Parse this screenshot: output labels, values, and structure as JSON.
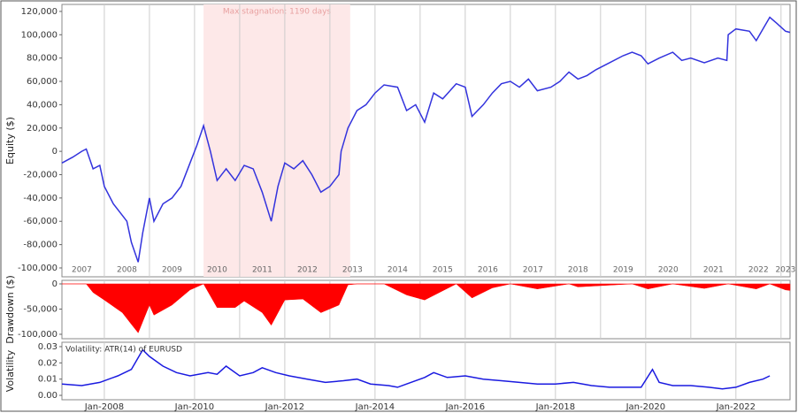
{
  "chart_data": [
    {
      "type": "line",
      "ylabel": "Equity ($)",
      "x": [
        2007.06,
        2007.3,
        2007.5,
        2007.6,
        2007.75,
        2007.9,
        2008.0,
        2008.2,
        2008.4,
        2008.5,
        2008.6,
        2008.75,
        2008.85,
        2009.0,
        2009.1,
        2009.3,
        2009.5,
        2009.7,
        2009.9,
        2010.05,
        2010.2,
        2010.35,
        2010.5,
        2010.7,
        2010.9,
        2011.1,
        2011.3,
        2011.5,
        2011.7,
        2011.85,
        2012.0,
        2012.2,
        2012.4,
        2012.6,
        2012.8,
        2013.0,
        2013.2,
        2013.25,
        2013.4,
        2013.6,
        2013.8,
        2014.0,
        2014.2,
        2014.5,
        2014.7,
        2014.9,
        2015.1,
        2015.3,
        2015.5,
        2015.8,
        2016.0,
        2016.15,
        2016.4,
        2016.6,
        2016.8,
        2017.0,
        2017.2,
        2017.4,
        2017.6,
        2017.9,
        2018.1,
        2018.3,
        2018.5,
        2018.7,
        2018.9,
        2019.2,
        2019.5,
        2019.7,
        2019.9,
        2020.05,
        2020.3,
        2020.6,
        2020.8,
        2021.0,
        2021.3,
        2021.6,
        2021.8,
        2021.83,
        2022.0,
        2022.3,
        2022.45,
        2022.6,
        2022.75,
        2022.9,
        2023.1,
        2023.2
      ],
      "series": [
        {
          "name": "Equity",
          "color": "#3333dd",
          "values": [
            -10000,
            -5000,
            0,
            2000,
            -15000,
            -12000,
            -30000,
            -45000,
            -55000,
            -60000,
            -78000,
            -95000,
            -70000,
            -40000,
            -60000,
            -45000,
            -40000,
            -30000,
            -10000,
            5000,
            22000,
            0,
            -25000,
            -15000,
            -25000,
            -12000,
            -15000,
            -35000,
            -60000,
            -30000,
            -10000,
            -15000,
            -8000,
            -20000,
            -35000,
            -30000,
            -20000,
            0,
            20000,
            35000,
            40000,
            50000,
            57000,
            55000,
            35000,
            40000,
            25000,
            50000,
            45000,
            58000,
            55000,
            30000,
            40000,
            50000,
            58000,
            60000,
            55000,
            62000,
            52000,
            55000,
            60000,
            68000,
            62000,
            65000,
            70000,
            76000,
            82000,
            85000,
            82000,
            75000,
            80000,
            85000,
            78000,
            80000,
            76000,
            80000,
            78000,
            100000,
            105000,
            103000,
            95000,
            105000,
            115000,
            110000,
            103000,
            102000
          ]
        }
      ],
      "xlim": [
        2007.06,
        2023.2
      ],
      "ylim": [
        -107600,
        126000
      ],
      "yticks": [
        {
          "value": -100000,
          "label": "-100,000"
        },
        {
          "value": -80000,
          "label": "-80,000"
        },
        {
          "value": -60000,
          "label": "-60,000"
        },
        {
          "value": -40000,
          "label": "-40,000"
        },
        {
          "value": -20000,
          "label": "-20,000"
        },
        0,
        {
          "value": 20000,
          "label": "20,000"
        },
        {
          "value": 40000,
          "label": "40,000"
        },
        {
          "value": 60000,
          "label": "60,000"
        },
        {
          "value": 80000,
          "label": "80,000"
        },
        {
          "value": 100000,
          "label": "100,000"
        },
        {
          "value": 120000,
          "label": "120,000"
        }
      ],
      "xticks": [
        {
          "value": 2007.5,
          "label": "2007"
        },
        {
          "value": 2008.5,
          "label": "2008"
        },
        {
          "value": 2009.5,
          "label": "2009"
        },
        {
          "value": 2010.5,
          "label": "2010"
        },
        {
          "value": 2011.5,
          "label": "2011"
        },
        {
          "value": 2012.5,
          "label": "2012"
        },
        {
          "value": 2013.5,
          "label": "2013"
        },
        {
          "value": 2014.5,
          "label": "2014"
        },
        {
          "value": 2015.5,
          "label": "2015"
        },
        {
          "value": 2016.5,
          "label": "2016"
        },
        {
          "value": 2017.5,
          "label": "2017"
        },
        {
          "value": 2018.5,
          "label": "2018"
        },
        {
          "value": 2019.5,
          "label": "2019"
        },
        {
          "value": 2020.5,
          "label": "2020"
        },
        {
          "value": 2021.5,
          "label": "2021"
        },
        {
          "value": 2022.5,
          "label": "2022"
        },
        {
          "value": 2023.1,
          "label": "2023"
        }
      ],
      "xgrid": [
        2008,
        2009,
        2010,
        2011,
        2012,
        2013,
        2014,
        2015,
        2016,
        2017,
        2018,
        2019,
        2020,
        2021,
        2022,
        2023
      ],
      "stagnation": {
        "start": 2010.2,
        "end": 2013.45,
        "label": "Max stagnation: 1190 days",
        "color": "#fde8e8"
      }
    },
    {
      "type": "area",
      "ylabel": "Drawdown ($)",
      "x": [
        2007.06,
        2007.5,
        2007.6,
        2007.75,
        2008.0,
        2008.4,
        2008.6,
        2008.75,
        2009.0,
        2009.1,
        2009.5,
        2009.9,
        2010.2,
        2010.5,
        2010.9,
        2011.1,
        2011.5,
        2011.7,
        2012.0,
        2012.4,
        2012.8,
        2013.2,
        2013.4,
        2013.6,
        2014.2,
        2014.7,
        2015.1,
        2015.8,
        2016.15,
        2016.6,
        2017.0,
        2017.6,
        2018.3,
        2018.5,
        2019.7,
        2020.05,
        2020.6,
        2021.3,
        2021.83,
        2022.45,
        2022.75,
        2023.1,
        2023.2
      ],
      "series": [
        {
          "name": "Drawdown",
          "color": "#ff0000",
          "values": [
            0,
            0,
            0,
            -17000,
            -32000,
            -57000,
            -80000,
            -97000,
            -42000,
            -62000,
            -42000,
            -12000,
            0,
            -47000,
            -47000,
            -34000,
            -57000,
            -82000,
            -32000,
            -30000,
            -57000,
            -42000,
            -2000,
            0,
            0,
            -22000,
            -32000,
            0,
            -28000,
            -8000,
            0,
            -10000,
            0,
            -6000,
            0,
            -10000,
            0,
            -9000,
            0,
            -10000,
            0,
            -12000,
            -13000
          ]
        }
      ],
      "xlim": [
        2007.06,
        2023.2
      ],
      "ylim": [
        -108800,
        7000
      ],
      "yticks": [
        {
          "value": -100000,
          "label": "-100,000"
        },
        {
          "value": -50000,
          "label": "-50,000"
        },
        0
      ],
      "xgrid": [
        2008,
        2009,
        2010,
        2011,
        2012,
        2013,
        2014,
        2015,
        2016,
        2017,
        2018,
        2019,
        2020,
        2021,
        2022,
        2023
      ]
    },
    {
      "type": "line",
      "ylabel": "Volatility",
      "x": [
        2007.06,
        2007.5,
        2007.9,
        2008.3,
        2008.6,
        2008.85,
        2009.0,
        2009.3,
        2009.6,
        2009.9,
        2010.3,
        2010.5,
        2010.7,
        2011.0,
        2011.3,
        2011.5,
        2011.8,
        2012.1,
        2012.5,
        2012.9,
        2013.3,
        2013.6,
        2013.9,
        2014.3,
        2014.5,
        2014.7,
        2015.1,
        2015.3,
        2015.6,
        2016.0,
        2016.4,
        2016.8,
        2017.2,
        2017.6,
        2018.0,
        2018.4,
        2018.8,
        2019.2,
        2019.6,
        2019.9,
        2020.15,
        2020.3,
        2020.6,
        2021.0,
        2021.4,
        2021.7,
        2022.0,
        2022.3,
        2022.6,
        2022.75
      ],
      "series": [
        {
          "name": "Volatility: ATR(14) of EURUSD",
          "color": "#1a1ae0",
          "values": [
            0.007,
            0.006,
            0.008,
            0.012,
            0.016,
            0.028,
            0.024,
            0.018,
            0.014,
            0.012,
            0.014,
            0.013,
            0.018,
            0.012,
            0.014,
            0.017,
            0.014,
            0.012,
            0.01,
            0.008,
            0.009,
            0.01,
            0.007,
            0.006,
            0.005,
            0.007,
            0.011,
            0.014,
            0.011,
            0.012,
            0.01,
            0.009,
            0.008,
            0.007,
            0.007,
            0.008,
            0.006,
            0.005,
            0.005,
            0.005,
            0.016,
            0.008,
            0.006,
            0.006,
            0.005,
            0.004,
            0.005,
            0.008,
            0.01,
            0.012
          ]
        }
      ],
      "xlim": [
        2007.06,
        2023.2
      ],
      "ylim": [
        -0.0027,
        0.0327
      ],
      "yticks": [
        {
          "value": 0,
          "label": "0.00"
        },
        0.01,
        0.02,
        0.03
      ],
      "xticks": [
        {
          "value": 2008,
          "label": "Jan-2008"
        },
        {
          "value": 2010,
          "label": "Jan-2010"
        },
        {
          "value": 2012,
          "label": "Jan-2012"
        },
        {
          "value": 2014,
          "label": "Jan-2014"
        },
        {
          "value": 2016,
          "label": "Jan-2016"
        },
        {
          "value": 2018,
          "label": "Jan-2018"
        },
        {
          "value": 2020,
          "label": "Jan-2020"
        },
        {
          "value": 2022,
          "label": "Jan-2022"
        }
      ]
    }
  ]
}
